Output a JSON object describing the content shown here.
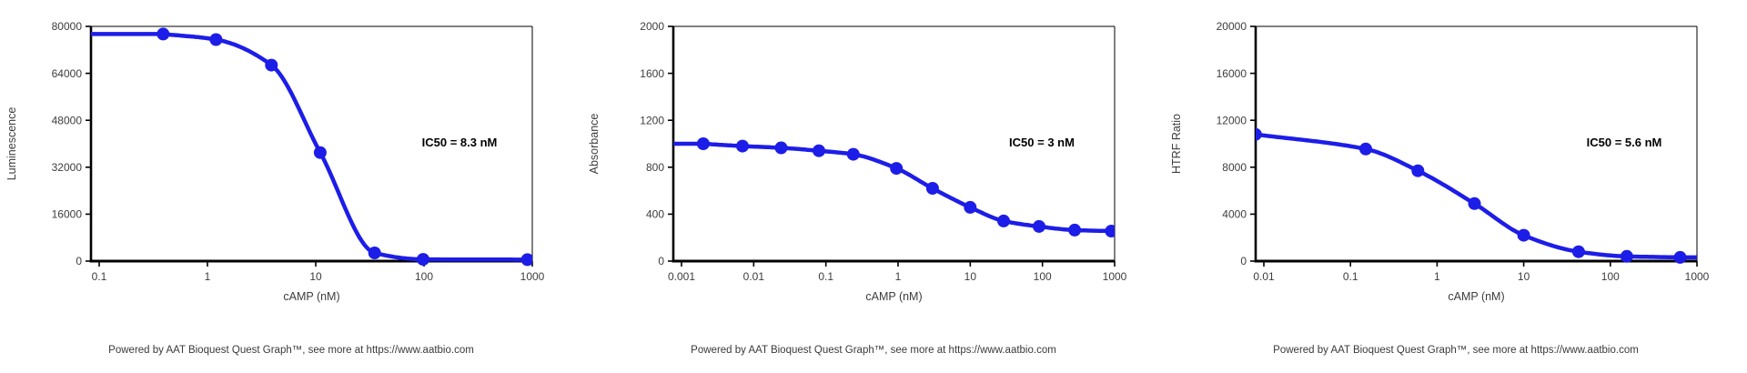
{
  "page": {
    "background": "#ffffff"
  },
  "style": {
    "curve_color": "#1d1de8",
    "axis_color": "#000000",
    "tick_text_color": "#3d3d3d",
    "annotation_color": "#000000",
    "footer_color": "#3a3a3a"
  },
  "footer": {
    "text": "Powered by AAT Bioquest Quest Graph™, see more at https://www.aatbio.com"
  },
  "chart_data": [
    {
      "type": "scatter",
      "curve": "sigmoidal-4PL-fit",
      "title": "",
      "xlabel": "cAMP (nM)",
      "ylabel": "Luminescence",
      "x_scale": "log",
      "grid": false,
      "legend": "none",
      "annotation": "IC50 = 8.3 nM",
      "ic50_nM": 8.3,
      "x_ticks": [
        0.1,
        1,
        10,
        100,
        1000
      ],
      "y_ticks": [
        0,
        16000,
        32000,
        48000,
        64000,
        80000
      ],
      "ylim": [
        0,
        80000
      ],
      "x": [
        0.39,
        1.2,
        3.9,
        11,
        35,
        98,
        900
      ],
      "y": [
        77400,
        75500,
        66800,
        37000,
        2800,
        600,
        500
      ]
    },
    {
      "type": "scatter",
      "curve": "sigmoidal-4PL-fit",
      "title": "",
      "xlabel": "cAMP (nM)",
      "ylabel": "Absorbance",
      "x_scale": "log",
      "grid": false,
      "legend": "none",
      "annotation": "IC50 = 3 nM",
      "ic50_nM": 3,
      "x_ticks": [
        0.001,
        0.01,
        0.1,
        1,
        10,
        100,
        1000
      ],
      "y_ticks": [
        0,
        400,
        800,
        1200,
        1600,
        2000
      ],
      "ylim": [
        0,
        2000
      ],
      "x": [
        0.002,
        0.007,
        0.024,
        0.08,
        0.24,
        0.95,
        3,
        10,
        29,
        90,
        280,
        900
      ],
      "y": [
        1000,
        980,
        965,
        940,
        910,
        790,
        620,
        458,
        342,
        295,
        264,
        256
      ]
    },
    {
      "type": "scatter",
      "curve": "sigmoidal-4PL-fit",
      "title": "",
      "xlabel": "cAMP (nM)",
      "ylabel": "HTRF Ratio",
      "x_scale": "log",
      "grid": false,
      "legend": "none",
      "annotation": "IC50 = 5.6 nM",
      "ic50_nM": 5.6,
      "x_ticks": [
        0.01,
        0.1,
        1,
        10,
        100,
        1000
      ],
      "y_ticks": [
        0,
        4000,
        8000,
        12000,
        16000,
        20000
      ],
      "ylim": [
        0,
        20000
      ],
      "x": [
        0.008,
        0.15,
        0.6,
        2.7,
        10,
        43,
        155,
        640
      ],
      "y": [
        10800,
        9550,
        7700,
        4900,
        2200,
        800,
        400,
        320
      ]
    }
  ]
}
